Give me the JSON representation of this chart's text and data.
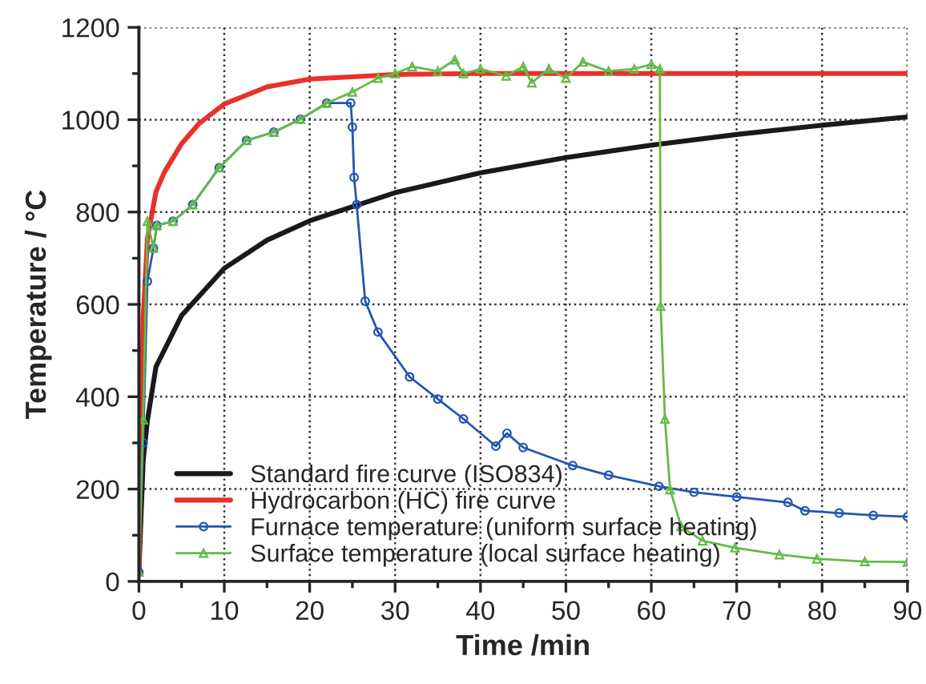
{
  "chart_data": {
    "type": "line",
    "xlabel": "Time /min",
    "ylabel": "Temperature / °C",
    "xlim": [
      0,
      90
    ],
    "xticks": [
      0,
      10,
      20,
      30,
      40,
      50,
      60,
      70,
      80,
      90
    ],
    "ylim": [
      0,
      1200
    ],
    "yticks": [
      0,
      200,
      400,
      600,
      800,
      1000,
      1200
    ],
    "grid": true,
    "legend": "bottom left",
    "series": [
      {
        "name": "Standard fire curve (ISO834)",
        "color": "#1a1a1a",
        "marker": "none",
        "x": [
          0,
          0.5,
          1,
          2,
          3,
          5,
          10,
          15,
          20,
          30,
          40,
          50,
          60,
          70,
          80,
          90
        ],
        "values": [
          20,
          261,
          349,
          465,
          502,
          576,
          678,
          739,
          781,
          842,
          885,
          918,
          945,
          968,
          988,
          1006
        ]
      },
      {
        "name": "Hydrocarbon (HC) fire curve",
        "color": "#e8312a",
        "marker": "none",
        "x": [
          0,
          0.5,
          1,
          2,
          3,
          5,
          7,
          10,
          15,
          20,
          30,
          40,
          90
        ],
        "values": [
          20,
          569,
          743,
          844,
          887,
          948,
          991,
          1034,
          1071,
          1088,
          1098,
          1100,
          1100
        ]
      },
      {
        "name": "Furnace temperature (uniform surface heating)",
        "color": "#2356b0",
        "marker": "circle",
        "x": [
          0,
          0.5,
          1,
          1.7,
          2.1,
          4,
          6.3,
          9.4,
          12.6,
          15.8,
          18.9,
          22,
          24.8,
          25,
          25.2,
          25.5,
          26.5,
          28,
          31.7,
          35,
          38,
          41.8,
          43.1,
          45,
          50.8,
          55,
          60.9,
          65,
          70,
          76,
          78,
          82,
          86,
          90
        ],
        "values": [
          20,
          300,
          650,
          722,
          771,
          780,
          816,
          896,
          955,
          973,
          1001,
          1036,
          1036,
          984,
          875,
          816,
          607,
          540,
          443,
          395,
          352,
          293,
          321,
          290,
          251,
          230,
          206,
          193,
          183,
          171,
          153,
          148,
          143,
          140
        ]
      },
      {
        "name": "Surface temperature (local surface heating)",
        "color": "#62bb46",
        "marker": "triangle",
        "x": [
          0,
          0.5,
          1,
          1.7,
          2.1,
          4,
          6.3,
          9.4,
          12.6,
          15.8,
          18.9,
          22,
          25,
          28,
          30,
          32,
          35,
          37,
          38,
          40,
          43,
          45,
          46,
          48,
          50,
          52,
          55,
          58,
          60,
          61,
          61.1,
          61.6,
          62.2,
          63.5,
          66,
          69.8,
          75,
          79.4,
          85,
          90
        ],
        "values": [
          20,
          350,
          780,
          722,
          771,
          780,
          816,
          896,
          955,
          973,
          1001,
          1036,
          1060,
          1090,
          1100,
          1115,
          1105,
          1130,
          1100,
          1110,
          1095,
          1115,
          1080,
          1110,
          1090,
          1125,
          1105,
          1110,
          1120,
          1110,
          596,
          352,
          199,
          119,
          88,
          73,
          58,
          49,
          43,
          42
        ]
      }
    ]
  }
}
